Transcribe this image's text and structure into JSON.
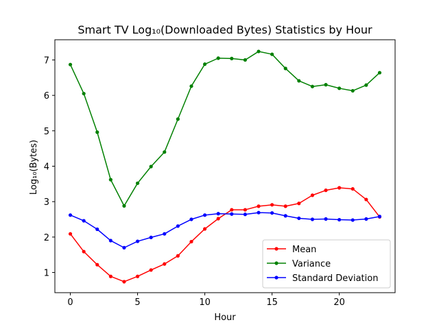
{
  "chart_data": {
    "type": "line",
    "title": "Smart TV Log₁₀(Downloaded Bytes) Statistics by Hour",
    "xlabel": "Hour",
    "ylabel": "Log₁₀(Bytes)",
    "xlim": [
      -1.15,
      24.15
    ],
    "ylim": [
      0.43,
      7.57
    ],
    "xticks": [
      0,
      5,
      10,
      15,
      20
    ],
    "yticks": [
      1,
      2,
      3,
      4,
      5,
      6,
      7
    ],
    "grid": false,
    "legend_position": "lower-right",
    "x": [
      0,
      1,
      2,
      3,
      4,
      5,
      6,
      7,
      8,
      9,
      10,
      11,
      12,
      13,
      14,
      15,
      16,
      17,
      18,
      19,
      20,
      21,
      22,
      23
    ],
    "series": [
      {
        "name": "Mean",
        "color": "#ff0000",
        "values": [
          2.09,
          1.59,
          1.22,
          0.89,
          0.74,
          0.89,
          1.07,
          1.24,
          1.47,
          1.87,
          2.23,
          2.52,
          2.77,
          2.77,
          2.87,
          2.91,
          2.87,
          2.95,
          3.18,
          3.32,
          3.39,
          3.36,
          3.06,
          2.57
        ]
      },
      {
        "name": "Variance",
        "color": "#008000",
        "values": [
          6.87,
          6.05,
          4.96,
          3.62,
          2.88,
          3.52,
          3.99,
          4.4,
          5.33,
          6.26,
          6.88,
          7.05,
          7.04,
          7.0,
          7.24,
          7.16,
          6.76,
          6.41,
          6.25,
          6.3,
          6.2,
          6.13,
          6.29,
          6.64
        ]
      },
      {
        "name": "Standard Deviation",
        "color": "#0000ff",
        "values": [
          2.62,
          2.46,
          2.22,
          1.9,
          1.7,
          1.88,
          1.99,
          2.09,
          2.31,
          2.5,
          2.62,
          2.66,
          2.65,
          2.64,
          2.69,
          2.68,
          2.6,
          2.53,
          2.5,
          2.51,
          2.49,
          2.48,
          2.51,
          2.58
        ]
      }
    ]
  }
}
